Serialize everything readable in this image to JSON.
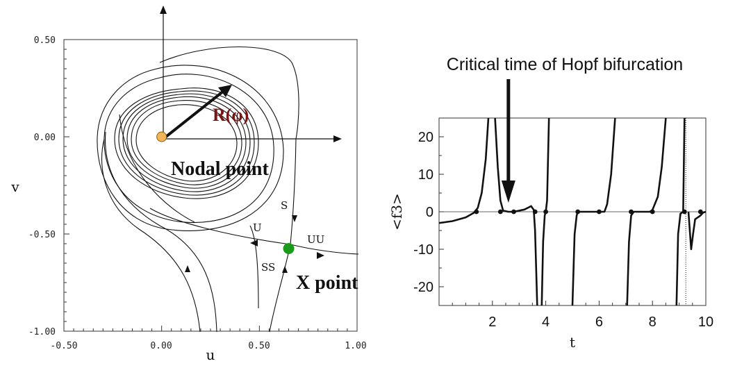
{
  "chart_data": [
    {
      "type": "phase-portrait",
      "xlabel": "u",
      "ylabel": "v",
      "xlim": [
        -0.5,
        1.0
      ],
      "ylim": [
        -1.0,
        0.5
      ],
      "x_ticks": [
        "-0.50",
        "0.00",
        "0.50",
        "1.00"
      ],
      "y_ticks": [
        "0.50",
        "0.00",
        "-0.50",
        "-1.00"
      ],
      "annotations": {
        "radius": "R(φ)",
        "nodal": "Nodal point",
        "xpoint": "X point",
        "s": "S",
        "u": "U",
        "uu": "UU",
        "ss": "SS"
      },
      "points": [
        {
          "label": "Nodal point",
          "u": 0.0,
          "v": 0.0,
          "color": "#f2b55c"
        },
        {
          "label": "X point",
          "u": 0.65,
          "v": -0.575,
          "color": "#1a9a1a"
        }
      ]
    },
    {
      "type": "line",
      "xlabel": "t",
      "ylabel": "<f3>",
      "xlim": [
        0,
        10
      ],
      "ylim": [
        -25,
        25
      ],
      "x_ticks": [
        "2",
        "4",
        "6",
        "8",
        "10"
      ],
      "y_ticks": [
        "20",
        "10",
        "0",
        "-10",
        "-20"
      ],
      "annotation": "Critical time of Hopf bifurcation",
      "annotation_t": 2.6,
      "zero_crossings": [
        1.4,
        2.3,
        2.8,
        3.6,
        4.0,
        5.2,
        6.0,
        7.2,
        8.0,
        9.2,
        9.8
      ]
    }
  ]
}
